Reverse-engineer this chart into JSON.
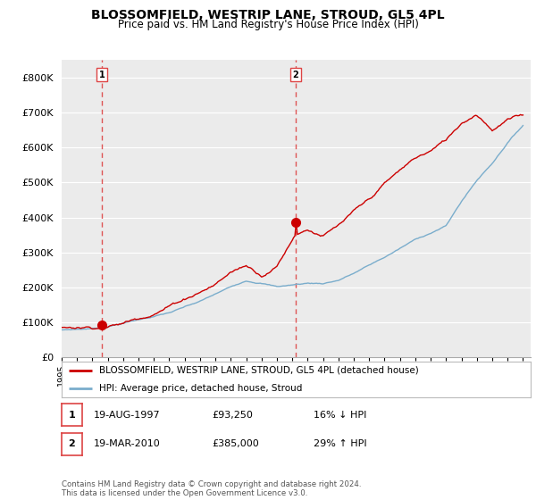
{
  "title": "BLOSSOMFIELD, WESTRIP LANE, STROUD, GL5 4PL",
  "subtitle": "Price paid vs. HM Land Registry's House Price Index (HPI)",
  "background_color": "#ffffff",
  "plot_bg_color": "#ebebeb",
  "grid_color": "#ffffff",
  "red_line_color": "#cc0000",
  "blue_line_color": "#7aadcc",
  "dashed_line_color": "#dd4444",
  "marker1_x": 1997.63,
  "marker1_y": 93250,
  "marker2_x": 2010.22,
  "marker2_y": 385000,
  "vline1_x": 1997.63,
  "vline2_x": 2010.22,
  "xlim_start": 1995.0,
  "xlim_end": 2025.5,
  "ylim": [
    0,
    850000
  ],
  "yticks": [
    0,
    100000,
    200000,
    300000,
    400000,
    500000,
    600000,
    700000,
    800000
  ],
  "ytick_labels": [
    "£0",
    "£100K",
    "£200K",
    "£300K",
    "£400K",
    "£500K",
    "£600K",
    "£700K",
    "£800K"
  ],
  "xticks": [
    1995,
    1996,
    1997,
    1998,
    1999,
    2000,
    2001,
    2002,
    2003,
    2004,
    2005,
    2006,
    2007,
    2008,
    2009,
    2010,
    2011,
    2012,
    2013,
    2014,
    2015,
    2016,
    2017,
    2018,
    2019,
    2020,
    2021,
    2022,
    2023,
    2024,
    2025
  ],
  "legend_red_label": "BLOSSOMFIELD, WESTRIP LANE, STROUD, GL5 4PL (detached house)",
  "legend_blue_label": "HPI: Average price, detached house, Stroud",
  "table_rows": [
    {
      "num": "1",
      "date": "19-AUG-1997",
      "price": "£93,250",
      "hpi": "16% ↓ HPI"
    },
    {
      "num": "2",
      "date": "19-MAR-2010",
      "price": "£385,000",
      "hpi": "29% ↑ HPI"
    }
  ],
  "footer": "Contains HM Land Registry data © Crown copyright and database right 2024.\nThis data is licensed under the Open Government Licence v3.0."
}
